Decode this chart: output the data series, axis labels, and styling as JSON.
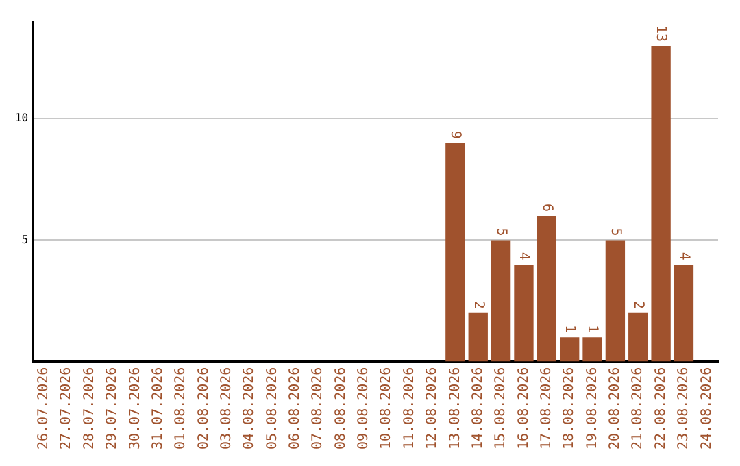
{
  "chart_data": {
    "type": "bar",
    "categories": [
      "26.07.2026",
      "27.07.2026",
      "28.07.2026",
      "29.07.2026",
      "30.07.2026",
      "31.07.2026",
      "01.08.2026",
      "02.08.2026",
      "03.08.2026",
      "04.08.2026",
      "05.08.2026",
      "06.08.2026",
      "07.08.2026",
      "08.08.2026",
      "09.08.2026",
      "10.08.2026",
      "11.08.2026",
      "12.08.2026",
      "13.08.2026",
      "14.08.2026",
      "15.08.2026",
      "16.08.2026",
      "17.08.2026",
      "18.08.2026",
      "19.08.2026",
      "20.08.2026",
      "21.08.2026",
      "22.08.2026",
      "23.08.2026",
      "24.08.2026"
    ],
    "values": [
      0,
      0,
      0,
      0,
      0,
      0,
      0,
      0,
      0,
      0,
      0,
      0,
      0,
      0,
      0,
      0,
      0,
      0,
      9,
      2,
      5,
      4,
      6,
      1,
      1,
      5,
      2,
      13,
      4,
      0
    ],
    "value_labels": [
      null,
      null,
      null,
      null,
      null,
      null,
      null,
      null,
      null,
      null,
      null,
      null,
      null,
      null,
      null,
      null,
      null,
      null,
      "9",
      "2",
      "5",
      "4",
      "6",
      "1",
      "1",
      "5",
      "2",
      "13",
      "4",
      null
    ],
    "color": "#a0522d",
    "ylim": [
      0,
      14
    ],
    "yticks": [
      5,
      10
    ],
    "grid": "y"
  }
}
